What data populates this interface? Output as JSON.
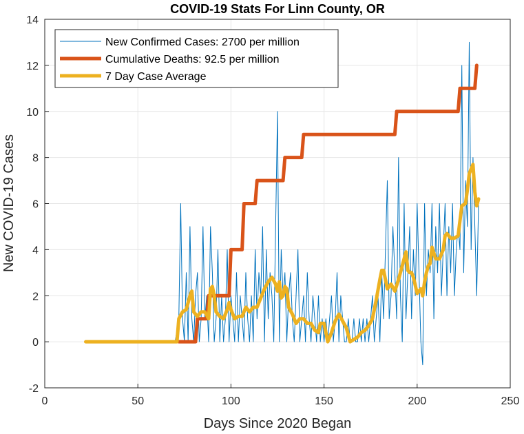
{
  "chart_data": {
    "type": "line",
    "title": "COVID-19 Stats For Linn County, OR",
    "xlabel": "Days Since 2020 Began",
    "ylabel": "New COVID-19 Cases",
    "xlim": [
      0,
      250
    ],
    "ylim": [
      -2,
      14
    ],
    "xticks": [
      0,
      50,
      100,
      150,
      200,
      250
    ],
    "yticks": [
      -2,
      0,
      2,
      4,
      6,
      8,
      10,
      12,
      14
    ],
    "grid": true,
    "legend_position": "top-left",
    "series": [
      {
        "name": "New Confirmed Cases: 2700 per million",
        "color": "#0072BD",
        "style": "thin",
        "points": [
          [
            22,
            0
          ],
          [
            40,
            0
          ],
          [
            60,
            0
          ],
          [
            70,
            0
          ],
          [
            72,
            1
          ],
          [
            73,
            6
          ],
          [
            74,
            1
          ],
          [
            75,
            0
          ],
          [
            76,
            3
          ],
          [
            77,
            0
          ],
          [
            78,
            5
          ],
          [
            79,
            1
          ],
          [
            80,
            0
          ],
          [
            81,
            2
          ],
          [
            82,
            3
          ],
          [
            83,
            0
          ],
          [
            84,
            1
          ],
          [
            85,
            5
          ],
          [
            86,
            1
          ],
          [
            87,
            2
          ],
          [
            88,
            0
          ],
          [
            89,
            5
          ],
          [
            90,
            3
          ],
          [
            91,
            0
          ],
          [
            92,
            1
          ],
          [
            93,
            4
          ],
          [
            94,
            0
          ],
          [
            95,
            2
          ],
          [
            96,
            0
          ],
          [
            97,
            1
          ],
          [
            98,
            4
          ],
          [
            99,
            0
          ],
          [
            100,
            2
          ],
          [
            101,
            1
          ],
          [
            102,
            0
          ],
          [
            103,
            3
          ],
          [
            104,
            0
          ],
          [
            105,
            2
          ],
          [
            106,
            1
          ],
          [
            107,
            0
          ],
          [
            108,
            3
          ],
          [
            109,
            1
          ],
          [
            110,
            0
          ],
          [
            111,
            2
          ],
          [
            112,
            0
          ],
          [
            113,
            4
          ],
          [
            114,
            1
          ],
          [
            115,
            3
          ],
          [
            116,
            2
          ],
          [
            117,
            5
          ],
          [
            118,
            0
          ],
          [
            119,
            4
          ],
          [
            120,
            1
          ],
          [
            121,
            3
          ],
          [
            122,
            2
          ],
          [
            123,
            0
          ],
          [
            124,
            5
          ],
          [
            125,
            10
          ],
          [
            126,
            0
          ],
          [
            127,
            4
          ],
          [
            128,
            2
          ],
          [
            129,
            3
          ],
          [
            130,
            0
          ],
          [
            131,
            2
          ],
          [
            132,
            3
          ],
          [
            133,
            1
          ],
          [
            134,
            0
          ],
          [
            135,
            2
          ],
          [
            136,
            4
          ],
          [
            137,
            0
          ],
          [
            138,
            1
          ],
          [
            139,
            2
          ],
          [
            140,
            0
          ],
          [
            141,
            3
          ],
          [
            142,
            1
          ],
          [
            143,
            0
          ],
          [
            144,
            2
          ],
          [
            145,
            1
          ],
          [
            146,
            0
          ],
          [
            147,
            2
          ],
          [
            148,
            0
          ],
          [
            149,
            1
          ],
          [
            150,
            0
          ],
          [
            151,
            1
          ],
          [
            152,
            0
          ],
          [
            153,
            1
          ],
          [
            154,
            2
          ],
          [
            155,
            0
          ],
          [
            156,
            1
          ],
          [
            157,
            3
          ],
          [
            158,
            0
          ],
          [
            159,
            2
          ],
          [
            160,
            1
          ],
          [
            161,
            0
          ],
          [
            162,
            0
          ],
          [
            163,
            1
          ],
          [
            164,
            0
          ],
          [
            165,
            0
          ],
          [
            166,
            1
          ],
          [
            167,
            0
          ],
          [
            168,
            0
          ],
          [
            169,
            1
          ],
          [
            170,
            0
          ],
          [
            171,
            1
          ],
          [
            172,
            0
          ],
          [
            173,
            1
          ],
          [
            174,
            0
          ],
          [
            175,
            1
          ],
          [
            176,
            2
          ],
          [
            177,
            0
          ],
          [
            178,
            1
          ],
          [
            179,
            2
          ],
          [
            180,
            0
          ],
          [
            181,
            3
          ],
          [
            182,
            1
          ],
          [
            183,
            4
          ],
          [
            184,
            7
          ],
          [
            185,
            1
          ],
          [
            186,
            2
          ],
          [
            187,
            5
          ],
          [
            188,
            3
          ],
          [
            189,
            1
          ],
          [
            190,
            8
          ],
          [
            191,
            2
          ],
          [
            192,
            0
          ],
          [
            193,
            6
          ],
          [
            194,
            1
          ],
          [
            195,
            3
          ],
          [
            196,
            5
          ],
          [
            197,
            1
          ],
          [
            198,
            4
          ],
          [
            199,
            2
          ],
          [
            200,
            6
          ],
          [
            201,
            3
          ],
          [
            202,
            0
          ],
          [
            203,
            -1
          ],
          [
            204,
            6
          ],
          [
            205,
            2
          ],
          [
            206,
            4
          ],
          [
            207,
            3
          ],
          [
            208,
            6
          ],
          [
            209,
            1
          ],
          [
            210,
            5
          ],
          [
            211,
            3
          ],
          [
            212,
            6
          ],
          [
            213,
            2
          ],
          [
            214,
            4
          ],
          [
            215,
            6
          ],
          [
            216,
            2
          ],
          [
            217,
            5
          ],
          [
            218,
            3
          ],
          [
            219,
            6
          ],
          [
            220,
            2
          ],
          [
            221,
            4
          ],
          [
            222,
            5
          ],
          [
            223,
            4
          ],
          [
            224,
            12
          ],
          [
            225,
            3
          ],
          [
            226,
            7
          ],
          [
            227,
            5
          ],
          [
            228,
            13
          ],
          [
            229,
            4
          ],
          [
            230,
            8
          ],
          [
            231,
            5
          ],
          [
            232,
            2
          ],
          [
            233,
            6
          ]
        ]
      },
      {
        "name": "Cumulative Deaths: 92.5 per million",
        "color": "#D95319",
        "style": "thick",
        "points": [
          [
            72,
            0
          ],
          [
            81,
            0
          ],
          [
            82,
            1
          ],
          [
            87,
            1
          ],
          [
            88,
            2
          ],
          [
            99,
            2
          ],
          [
            100,
            4
          ],
          [
            106,
            4
          ],
          [
            107,
            6
          ],
          [
            113,
            6
          ],
          [
            114,
            7
          ],
          [
            128,
            7
          ],
          [
            129,
            8
          ],
          [
            138,
            8
          ],
          [
            139,
            9
          ],
          [
            188,
            9
          ],
          [
            189,
            10
          ],
          [
            222,
            10
          ],
          [
            223,
            11
          ],
          [
            231,
            11
          ],
          [
            232,
            12
          ]
        ]
      },
      {
        "name": "7 Day Case Average",
        "color": "#EDB120",
        "style": "thick",
        "points": [
          [
            22,
            0
          ],
          [
            40,
            0
          ],
          [
            60,
            0
          ],
          [
            71,
            0
          ],
          [
            72,
            1
          ],
          [
            74,
            1.3
          ],
          [
            76,
            1.4
          ],
          [
            78,
            2
          ],
          [
            79,
            2.2
          ],
          [
            80,
            1.3
          ],
          [
            82,
            1.1
          ],
          [
            84,
            1.3
          ],
          [
            86,
            1.3
          ],
          [
            88,
            1
          ],
          [
            89,
            2.3
          ],
          [
            90,
            2.4
          ],
          [
            91,
            2
          ],
          [
            92,
            1.3
          ],
          [
            94,
            1.1
          ],
          [
            96,
            1
          ],
          [
            98,
            1.4
          ],
          [
            99,
            1.7
          ],
          [
            100,
            1.4
          ],
          [
            102,
            1
          ],
          [
            104,
            1.1
          ],
          [
            106,
            1.1
          ],
          [
            108,
            1.5
          ],
          [
            110,
            1.3
          ],
          [
            112,
            1.5
          ],
          [
            114,
            1.5
          ],
          [
            116,
            1.9
          ],
          [
            118,
            2.3
          ],
          [
            120,
            2.6
          ],
          [
            122,
            2.8
          ],
          [
            124,
            2.5
          ],
          [
            125,
            2.2
          ],
          [
            126,
            2.6
          ],
          [
            127,
            1.9
          ],
          [
            128,
            2.0
          ],
          [
            129,
            2.4
          ],
          [
            130,
            2.3
          ],
          [
            131,
            1.5
          ],
          [
            133,
            1.2
          ],
          [
            135,
            0.8
          ],
          [
            137,
            1.0
          ],
          [
            139,
            1.0
          ],
          [
            141,
            0.8
          ],
          [
            143,
            0.8
          ],
          [
            145,
            0.5
          ],
          [
            147,
            0.4
          ],
          [
            148,
            0.8
          ],
          [
            150,
            0.8
          ],
          [
            152,
            0.0
          ],
          [
            154,
            0.4
          ],
          [
            156,
            0.9
          ],
          [
            158,
            1.2
          ],
          [
            160,
            0.9
          ],
          [
            162,
            0.6
          ],
          [
            164,
            0.0
          ],
          [
            166,
            0.1
          ],
          [
            168,
            0.2
          ],
          [
            170,
            0.4
          ],
          [
            172,
            0.5
          ],
          [
            174,
            0.7
          ],
          [
            176,
            1.0
          ],
          [
            178,
            1.8
          ],
          [
            180,
            2.7
          ],
          [
            181,
            3.1
          ],
          [
            182,
            3.1
          ],
          [
            183,
            2.7
          ],
          [
            184,
            2.3
          ],
          [
            186,
            2.5
          ],
          [
            188,
            2.2
          ],
          [
            190,
            2.7
          ],
          [
            192,
            3.3
          ],
          [
            194,
            3.9
          ],
          [
            195,
            3.1
          ],
          [
            196,
            3.0
          ],
          [
            197,
            3.0
          ],
          [
            198,
            2.8
          ],
          [
            200,
            2.1
          ],
          [
            202,
            2.3
          ],
          [
            203,
            2.0
          ],
          [
            204,
            2.6
          ],
          [
            205,
            3.0
          ],
          [
            206,
            3.3
          ],
          [
            207,
            3.4
          ],
          [
            208,
            4.1
          ],
          [
            210,
            3.6
          ],
          [
            212,
            3.6
          ],
          [
            214,
            4.0
          ],
          [
            215,
            4.6
          ],
          [
            216,
            4.7
          ],
          [
            218,
            4.5
          ],
          [
            220,
            4.5
          ],
          [
            222,
            4.6
          ],
          [
            224,
            5.9
          ],
          [
            226,
            6.0
          ],
          [
            227,
            6.6
          ],
          [
            228,
            7.3
          ],
          [
            229,
            7.5
          ],
          [
            230,
            7.7
          ],
          [
            231,
            6.5
          ],
          [
            232,
            5.9
          ],
          [
            233,
            6.2
          ]
        ]
      }
    ]
  }
}
